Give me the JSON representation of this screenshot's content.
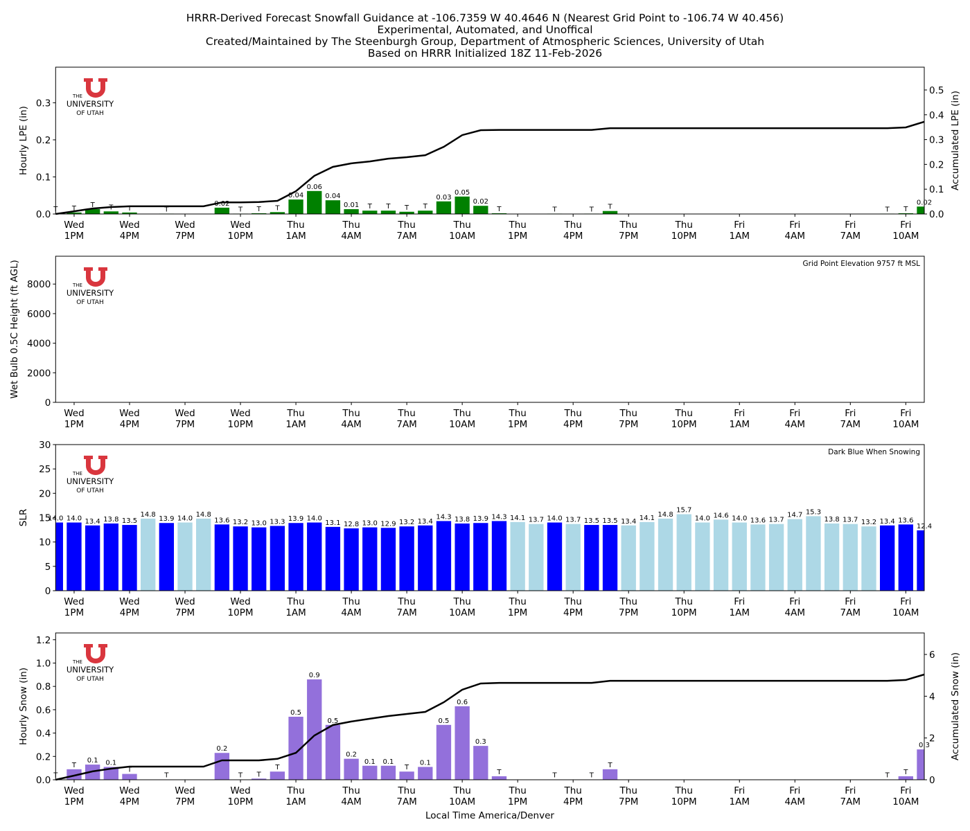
{
  "figure_title": [
    "HRRR-Derived Forecast Snowfall Guidance at -106.7359 W 40.4646 N (Nearest Grid Point to -106.74 W 40.456)",
    "Experimental, Automated, and Unoffical",
    "Created/Maintained by The Steenburgh Group, Department of Atmospheric Sciences, University of Utah",
    "Based on HRRR Initialized 18Z 11-Feb-2026"
  ],
  "logo": {
    "the": "THE",
    "university": "UNIVERSITY",
    "of_utah": "OF UTAH"
  },
  "x_label": "Local Time America/Denver",
  "chart_data": [
    {
      "type": "bar",
      "ylabel": "Hourly LPE (in)",
      "y2label": "Accumulated LPE (in)",
      "categories": [
        null,
        "Wed\n1PM",
        null,
        null,
        "Wed\n4PM",
        null,
        null,
        "Wed\n7PM",
        null,
        null,
        "Wed\n10PM",
        null,
        null,
        "Thu\n1AM",
        null,
        null,
        "Thu\n4AM",
        null,
        null,
        "Thu\n7AM",
        null,
        null,
        "Thu\n10AM",
        null,
        null,
        "Thu\n1PM",
        null,
        null,
        "Thu\n4PM",
        null,
        null,
        "Thu\n7PM",
        null,
        null,
        "Thu\n10PM",
        null,
        null,
        "Fri\n1AM",
        null,
        null,
        "Fri\n4AM",
        null,
        null,
        "Fri\n7AM",
        null,
        null,
        "Fri\n10AM",
        null
      ],
      "values": [
        0.002,
        0.004,
        0.013,
        0.007,
        0.004,
        0,
        0.001,
        0,
        0,
        0.017,
        0.001,
        0.002,
        0.005,
        0.039,
        0.062,
        0.037,
        0.013,
        0.009,
        0.009,
        0.006,
        0.009,
        0.034,
        0.047,
        0.022,
        0.002,
        0,
        0,
        0.001,
        0,
        0.001,
        0.008,
        0,
        0,
        0,
        0,
        0,
        0,
        0,
        0,
        0,
        0,
        0,
        0,
        0,
        0,
        0.001,
        0.002,
        0.02
      ],
      "value_labels": [
        "T",
        "T",
        "T",
        "T",
        "T",
        null,
        "T",
        null,
        null,
        "0.02",
        "T",
        "T",
        "T",
        "0.04",
        "0.06",
        "0.04",
        "0.01",
        "T",
        "T",
        "T",
        "T",
        "0.03",
        "0.05",
        "0.02",
        "T",
        null,
        null,
        "T",
        null,
        "T",
        "T",
        null,
        null,
        null,
        null,
        null,
        null,
        null,
        null,
        null,
        null,
        null,
        null,
        null,
        null,
        "T",
        "T",
        "0.02"
      ],
      "color": "#008000",
      "ylim": [
        0,
        0.396
      ],
      "yticks": [
        {
          "value": 0,
          "label": "0.0"
        },
        0.1,
        0.2,
        0.3
      ],
      "y2lim": [
        0,
        0.592
      ],
      "y2ticks": [
        {
          "value": 0,
          "label": "0.0"
        },
        0.1,
        0.2,
        0.3,
        0.4,
        0.5
      ],
      "accumulated": {
        "axis": "y2",
        "color": "#000000",
        "values": [
          0,
          0.011,
          0.022,
          0.028,
          0.031,
          0.031,
          0.031,
          0.031,
          0.031,
          0.047,
          0.047,
          0.048,
          0.053,
          0.092,
          0.154,
          0.19,
          0.204,
          0.212,
          0.223,
          0.229,
          0.237,
          0.271,
          0.318,
          0.338,
          0.339,
          0.339,
          0.339,
          0.339,
          0.339,
          0.339,
          0.346,
          0.346,
          0.346,
          0.346,
          0.346,
          0.346,
          0.346,
          0.346,
          0.346,
          0.346,
          0.346,
          0.346,
          0.346,
          0.346,
          0.346,
          0.346,
          0.349,
          0.372
        ]
      }
    },
    {
      "type": "bar",
      "ylabel": "Wet Bulb 0.5C Height (ft AGL)",
      "annotation": "Grid Point Elevation 9757 ft MSL",
      "categories": [
        null,
        "Wed\n1PM",
        null,
        null,
        "Wed\n4PM",
        null,
        null,
        "Wed\n7PM",
        null,
        null,
        "Wed\n10PM",
        null,
        null,
        "Thu\n1AM",
        null,
        null,
        "Thu\n4AM",
        null,
        null,
        "Thu\n7AM",
        null,
        null,
        "Thu\n10AM",
        null,
        null,
        "Thu\n1PM",
        null,
        null,
        "Thu\n4PM",
        null,
        null,
        "Thu\n7PM",
        null,
        null,
        "Thu\n10PM",
        null,
        null,
        "Fri\n1AM",
        null,
        null,
        "Fri\n4AM",
        null,
        null,
        "Fri\n7AM",
        null,
        null,
        "Fri\n10AM",
        null
      ],
      "ylim": [
        0,
        9883
      ],
      "yticks": [
        0,
        2000,
        4000,
        6000,
        8000
      ]
    },
    {
      "type": "bar",
      "ylabel": "SLR",
      "annotation": "Dark Blue When Snowing",
      "categories": [
        null,
        "Wed\n1PM",
        null,
        null,
        "Wed\n4PM",
        null,
        null,
        "Wed\n7PM",
        null,
        null,
        "Wed\n10PM",
        null,
        null,
        "Thu\n1AM",
        null,
        null,
        "Thu\n4AM",
        null,
        null,
        "Thu\n7AM",
        null,
        null,
        "Thu\n10AM",
        null,
        null,
        "Thu\n1PM",
        null,
        null,
        "Thu\n4PM",
        null,
        null,
        "Thu\n7PM",
        null,
        null,
        "Thu\n10PM",
        null,
        null,
        "Fri\n1AM",
        null,
        null,
        "Fri\n4AM",
        null,
        null,
        "Fri\n7AM",
        null,
        null,
        "Fri\n10AM",
        null
      ],
      "values": [
        14,
        14,
        13.4,
        13.8,
        13.5,
        14.8,
        13.9,
        14,
        14.8,
        13.6,
        13.2,
        13,
        13.3,
        13.9,
        14,
        13.1,
        12.8,
        13,
        12.9,
        13.2,
        13.4,
        14.3,
        13.8,
        13.9,
        14.3,
        14.1,
        13.7,
        14,
        13.7,
        13.5,
        13.5,
        13.4,
        14.1,
        14.8,
        15.7,
        14,
        14.6,
        14,
        13.6,
        13.7,
        14.7,
        15.3,
        13.8,
        13.7,
        13.2,
        13.4,
        13.6,
        12.4
      ],
      "value_labels": [
        "14.0",
        "14.0",
        "13.4",
        "13.8",
        "13.5",
        "14.8",
        "13.9",
        "14.0",
        "14.8",
        "13.6",
        "13.2",
        "13.0",
        "13.3",
        "13.9",
        "14.0",
        "13.1",
        "12.8",
        "13.0",
        "12.9",
        "13.2",
        "13.4",
        "14.3",
        "13.8",
        "13.9",
        "14.3",
        "14.1",
        "13.7",
        "14.0",
        "13.7",
        "13.5",
        "13.5",
        "13.4",
        "14.1",
        "14.8",
        "15.7",
        "14.0",
        "14.6",
        "14.0",
        "13.6",
        "13.7",
        "14.7",
        "15.3",
        "13.8",
        "13.7",
        "13.2",
        "13.4",
        "13.6",
        "12.4"
      ],
      "colors": [
        "#0000ff",
        "#0000ff",
        "#0000ff",
        "#0000ff",
        "#0000ff",
        "#add8e6",
        "#0000ff",
        "#add8e6",
        "#add8e6",
        "#0000ff",
        "#0000ff",
        "#0000ff",
        "#0000ff",
        "#0000ff",
        "#0000ff",
        "#0000ff",
        "#0000ff",
        "#0000ff",
        "#0000ff",
        "#0000ff",
        "#0000ff",
        "#0000ff",
        "#0000ff",
        "#0000ff",
        "#0000ff",
        "#add8e6",
        "#add8e6",
        "#0000ff",
        "#add8e6",
        "#0000ff",
        "#0000ff",
        "#add8e6",
        "#add8e6",
        "#add8e6",
        "#add8e6",
        "#add8e6",
        "#add8e6",
        "#add8e6",
        "#add8e6",
        "#add8e6",
        "#add8e6",
        "#add8e6",
        "#add8e6",
        "#add8e6",
        "#add8e6",
        "#0000ff",
        "#0000ff",
        "#0000ff"
      ],
      "ylim": [
        0,
        30
      ],
      "yticks": [
        0,
        5,
        10,
        15,
        20,
        25,
        30
      ]
    },
    {
      "type": "bar",
      "ylabel": "Hourly Snow (in)",
      "y2label": "Accumulated Snow (in)",
      "categories": [
        null,
        "Wed\n1PM",
        null,
        null,
        "Wed\n4PM",
        null,
        null,
        "Wed\n7PM",
        null,
        null,
        "Wed\n10PM",
        null,
        null,
        "Thu\n1AM",
        null,
        null,
        "Thu\n4AM",
        null,
        null,
        "Thu\n7AM",
        null,
        null,
        "Thu\n10AM",
        null,
        null,
        "Thu\n1PM",
        null,
        null,
        "Thu\n4PM",
        null,
        null,
        "Thu\n7PM",
        null,
        null,
        "Thu\n10PM",
        null,
        null,
        "Fri\n1AM",
        null,
        null,
        "Fri\n4AM",
        null,
        null,
        "Fri\n7AM",
        null,
        null,
        "Fri\n10AM",
        null
      ],
      "values": [
        0.002,
        0.09,
        0.13,
        0.11,
        0.05,
        0,
        0.003,
        0,
        0,
        0.23,
        0.003,
        0.01,
        0.07,
        0.54,
        0.86,
        0.47,
        0.18,
        0.12,
        0.12,
        0.07,
        0.11,
        0.47,
        0.63,
        0.29,
        0.03,
        0,
        0,
        0.003,
        0,
        0.003,
        0.09,
        0,
        0,
        0,
        0,
        0,
        0,
        0,
        0,
        0,
        0,
        0,
        0,
        0,
        0,
        0.003,
        0.03,
        0.26
      ],
      "value_labels": [
        "T",
        "T",
        "0.1",
        "0.1",
        "T",
        null,
        "T",
        null,
        null,
        "0.2",
        "T",
        "T",
        "T",
        "0.5",
        "0.9",
        "0.5",
        "0.2",
        "0.1",
        "0.1",
        "T",
        "0.1",
        "0.5",
        "0.6",
        "0.3",
        "T",
        null,
        null,
        "T",
        null,
        "T",
        "T",
        null,
        null,
        null,
        null,
        null,
        null,
        null,
        null,
        null,
        null,
        null,
        null,
        null,
        null,
        "T",
        "T",
        "0.3"
      ],
      "color": "#9370db",
      "ylim": [
        0,
        1.258
      ],
      "yticks": [
        {
          "value": 0,
          "label": "0.0"
        },
        0.2,
        0.4,
        0.6,
        0.8,
        {
          "value": 1,
          "label": "1.0"
        },
        1.2
      ],
      "y2lim": [
        0,
        7.03
      ],
      "y2ticks": [
        0,
        2,
        4,
        6
      ],
      "accumulated": {
        "axis": "y2",
        "color": "#000000",
        "values": [
          0,
          0.2,
          0.4,
          0.53,
          0.63,
          0.63,
          0.63,
          0.63,
          0.63,
          0.93,
          0.93,
          0.93,
          1.0,
          1.29,
          2.12,
          2.62,
          2.79,
          2.92,
          3.05,
          3.15,
          3.25,
          3.71,
          4.31,
          4.61,
          4.64,
          4.64,
          4.64,
          4.64,
          4.64,
          4.64,
          4.74,
          4.74,
          4.74,
          4.74,
          4.74,
          4.74,
          4.74,
          4.74,
          4.74,
          4.74,
          4.74,
          4.74,
          4.74,
          4.74,
          4.74,
          4.74,
          4.78,
          5.04
        ]
      }
    }
  ]
}
